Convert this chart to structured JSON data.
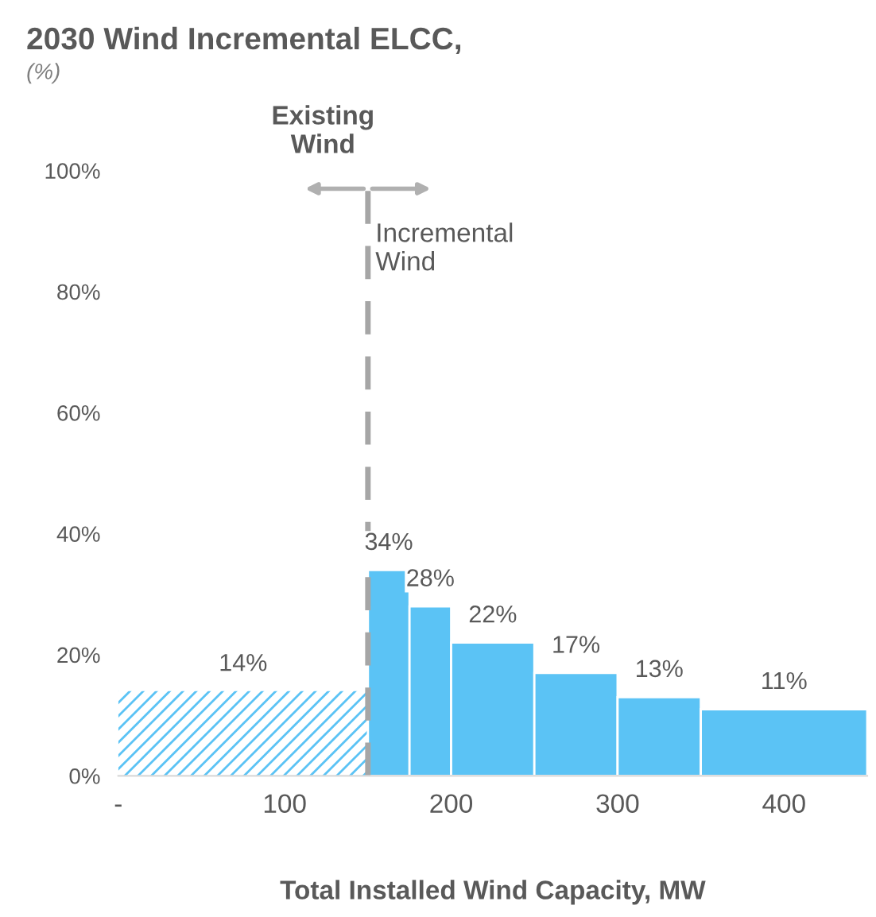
{
  "chart_data": {
    "type": "histogram",
    "title": "2030 Wind Incremental ELCC,",
    "subtitle": "(%)",
    "xlabel": "Total Installed Wind Capacity, MW",
    "bins": [
      0,
      150,
      175,
      200,
      250,
      300,
      350,
      450
    ],
    "values": [
      14,
      34,
      28,
      22,
      17,
      13,
      11
    ],
    "colors": [
      "#5bc3f5",
      "#5bc3f5",
      "#5bc3f5",
      "#5bc3f5",
      "#5bc3f5",
      "#5bc3f5",
      "#5bc3f5"
    ],
    "value_labels": [
      "14%",
      "34%",
      "28%",
      "22%",
      "17%",
      "13%",
      "11%"
    ],
    "xlim": [
      0,
      450
    ],
    "xticks": [
      {
        "value": 0,
        "label": "-"
      },
      100,
      200,
      300,
      400
    ],
    "ylim": [
      0,
      100
    ],
    "yticks": [
      {
        "value": 0,
        "label": "0%"
      },
      {
        "value": 20,
        "label": "20%"
      },
      {
        "value": 40,
        "label": "40%"
      },
      {
        "value": 60,
        "label": "60%"
      },
      {
        "value": 80,
        "label": "80%"
      },
      {
        "value": 100,
        "label": "100%"
      }
    ],
    "grid": false,
    "ref_lines": [
      {
        "axis": "x",
        "value": 150,
        "label": null,
        "color": "#a6a6a6",
        "line_style": "dashed"
      }
    ],
    "annotations": [
      "Existing\nWind",
      "Incremental\nWind"
    ]
  }
}
